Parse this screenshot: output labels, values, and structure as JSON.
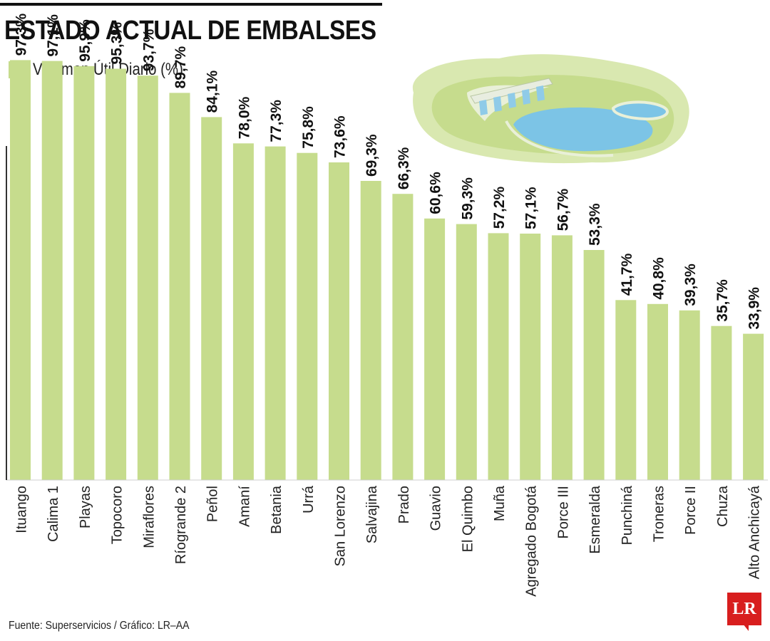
{
  "header": {
    "title": "ESTADO ACTUAL DE EMBALSES"
  },
  "footer": {
    "source": "Fuente: Superservicios / Gráfico: LR–AA",
    "logo": "LR"
  },
  "colors": {
    "bar": "#c6dc8d",
    "text": "#111111",
    "logo": "#d81e1e",
    "water": "#7cc4e6"
  },
  "chart_data": {
    "type": "bar",
    "title": "ESTADO ACTUAL DE EMBALSES",
    "xlabel": "",
    "ylabel": "",
    "ylim": [
      0,
      100
    ],
    "grid": false,
    "legend": "top-left",
    "series": [
      {
        "name": "Volúmen Útil Diario (%)",
        "values": [
          97.3,
          97.1,
          95.9,
          95.3,
          93.7,
          89.7,
          84.1,
          78.0,
          77.3,
          75.8,
          73.6,
          69.3,
          66.3,
          60.6,
          59.3,
          57.2,
          57.1,
          56.7,
          53.3,
          41.7,
          40.8,
          39.3,
          35.7,
          33.9
        ]
      }
    ],
    "categories": [
      "Ituango",
      "Calima 1",
      "Playas",
      "Topocoro",
      "Miraflores",
      "Ríogrande 2",
      "Peñol",
      "Amaní",
      "Betania",
      "Urrá",
      "San Lorenzo",
      "Salvajina",
      "Prado",
      "Guavio",
      "El Quimbo",
      "Muña",
      "Agregado Bogotá",
      "Porce III",
      "Esmeralda",
      "Punchiná",
      "Troneras",
      "Porce II",
      "Chuza",
      "Alto Anchicayá"
    ],
    "data_labels": [
      "97,3%",
      "97,1%",
      "95,9%",
      "95,3%",
      "93,7%",
      "89,7%",
      "84,1%",
      "78,0%",
      "77,3%",
      "75,8%",
      "73,6%",
      "69,3%",
      "66,3%",
      "60,6%",
      "59,3%",
      "57,2%",
      "57,1%",
      "56,7%",
      "53,3%",
      "41,7%",
      "40,8%",
      "39,3%",
      "35,7%",
      "33,9%"
    ]
  }
}
